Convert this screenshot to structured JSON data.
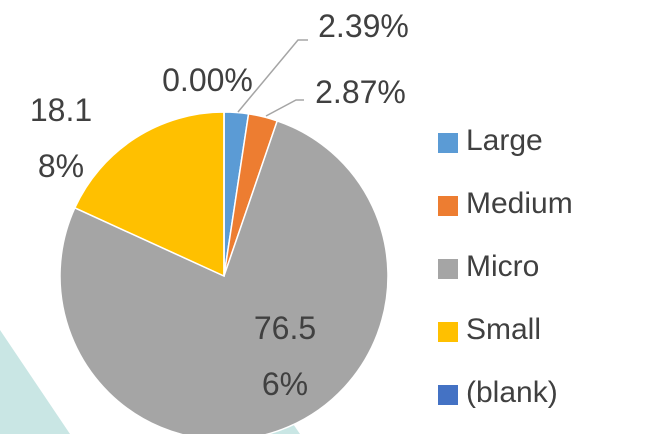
{
  "chart_data": {
    "type": "pie",
    "categories": [
      "Large",
      "Medium",
      "Micro",
      "Small",
      "(blank)"
    ],
    "values": [
      2.39,
      2.87,
      76.56,
      18.18,
      0.0
    ],
    "value_labels": [
      "2.39%",
      "2.87%",
      "76.56%",
      "18.18%",
      "0.00%"
    ],
    "colors": [
      "#5b9bd5",
      "#ed7d31",
      "#a5a5a5",
      "#ffc000",
      "#4472c4"
    ],
    "legend": "right"
  }
}
